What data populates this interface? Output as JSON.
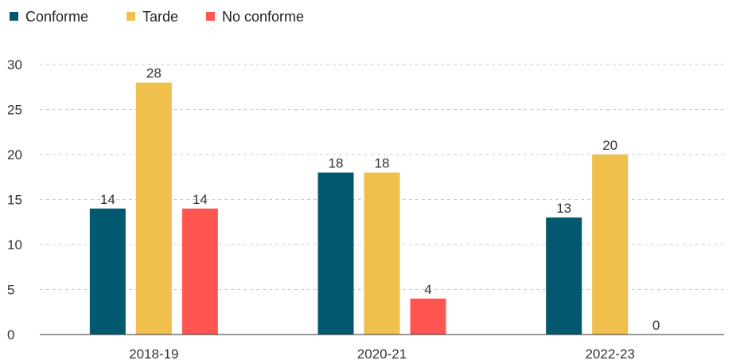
{
  "chart_data": {
    "type": "bar",
    "categories": [
      "2018-19",
      "2020-21",
      "2022-23"
    ],
    "series": [
      {
        "name": "Conforme",
        "values": [
          14,
          18,
          13
        ],
        "color": "#02586f"
      },
      {
        "name": "Tarde",
        "values": [
          28,
          18,
          20
        ],
        "color": "#f1bf4b"
      },
      {
        "name": "No conforme",
        "values": [
          14,
          4,
          0
        ],
        "color": "#ff5550"
      }
    ],
    "ylim": [
      0,
      30
    ],
    "yticks": [
      0,
      5,
      10,
      15,
      20,
      25,
      30
    ],
    "grid": true,
    "legend_position": "top-left",
    "data_labels": true
  }
}
